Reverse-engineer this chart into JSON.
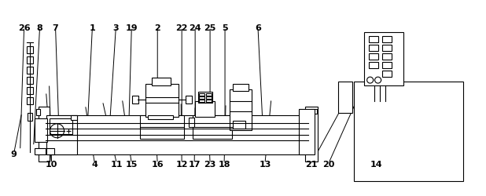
{
  "bg": "#ffffff",
  "lc": "#000000",
  "lw": 0.8,
  "fw": 6.18,
  "fh": 2.51,
  "dpi": 100,
  "annotations_top": [
    [
      "9",
      17,
      197,
      27,
      145
    ],
    [
      "10",
      65,
      210,
      58,
      118
    ],
    [
      "10",
      65,
      210,
      62,
      108
    ],
    [
      "4",
      120,
      210,
      108,
      135
    ],
    [
      "11",
      148,
      210,
      130,
      130
    ],
    [
      "15",
      167,
      210,
      155,
      127
    ],
    [
      "16",
      200,
      210,
      196,
      142
    ],
    [
      "12",
      231,
      210,
      230,
      131
    ],
    [
      "17",
      247,
      210,
      248,
      136
    ],
    [
      "23",
      267,
      210,
      264,
      135
    ],
    [
      "18",
      285,
      210,
      287,
      133
    ],
    [
      "13",
      337,
      210,
      345,
      127
    ],
    [
      "21",
      396,
      210,
      434,
      140
    ],
    [
      "20",
      418,
      210,
      461,
      113
    ],
    [
      "14",
      479,
      210,
      512,
      147
    ]
  ],
  "annotations_bot": [
    [
      "26",
      30,
      35,
      25,
      193
    ],
    [
      "8",
      50,
      35,
      42,
      188
    ],
    [
      "7",
      70,
      35,
      75,
      185
    ],
    [
      "1",
      117,
      35,
      110,
      178
    ],
    [
      "3",
      147,
      35,
      138,
      178
    ],
    [
      "19",
      167,
      35,
      163,
      178
    ],
    [
      "2",
      200,
      35,
      200,
      178
    ],
    [
      "22",
      231,
      35,
      231,
      178
    ],
    [
      "24",
      248,
      35,
      248,
      178
    ],
    [
      "25",
      267,
      35,
      267,
      178
    ],
    [
      "5",
      286,
      35,
      286,
      178
    ],
    [
      "6",
      328,
      35,
      335,
      178
    ]
  ]
}
